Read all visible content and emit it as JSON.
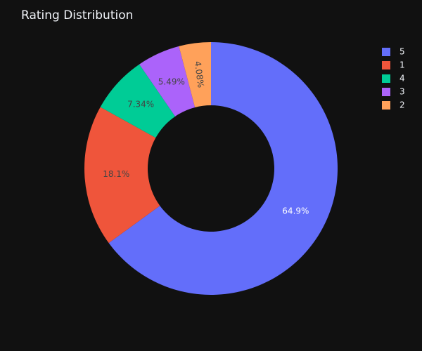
{
  "chart_data": {
    "type": "pie",
    "title": "Rating Distribution",
    "hole": 0.5,
    "categories": [
      "5",
      "1",
      "4",
      "3",
      "2"
    ],
    "values": [
      64.9,
      18.1,
      7.34,
      5.49,
      4.08
    ],
    "labels": [
      "64.9%",
      "18.1%",
      "7.34%",
      "5.49%",
      "4.08%"
    ],
    "colors": [
      "#636efa",
      "#ef553b",
      "#00cc96",
      "#ab63fa",
      "#ffa15a"
    ],
    "label_colors": [
      "#ffffff",
      "#444444",
      "#444444",
      "#444444",
      "#444444"
    ],
    "legend_position": "top-right",
    "direction": "clockwise",
    "start_angle": "top"
  },
  "theme": {
    "background": "#111111",
    "text_color": "#f2f5fa"
  }
}
